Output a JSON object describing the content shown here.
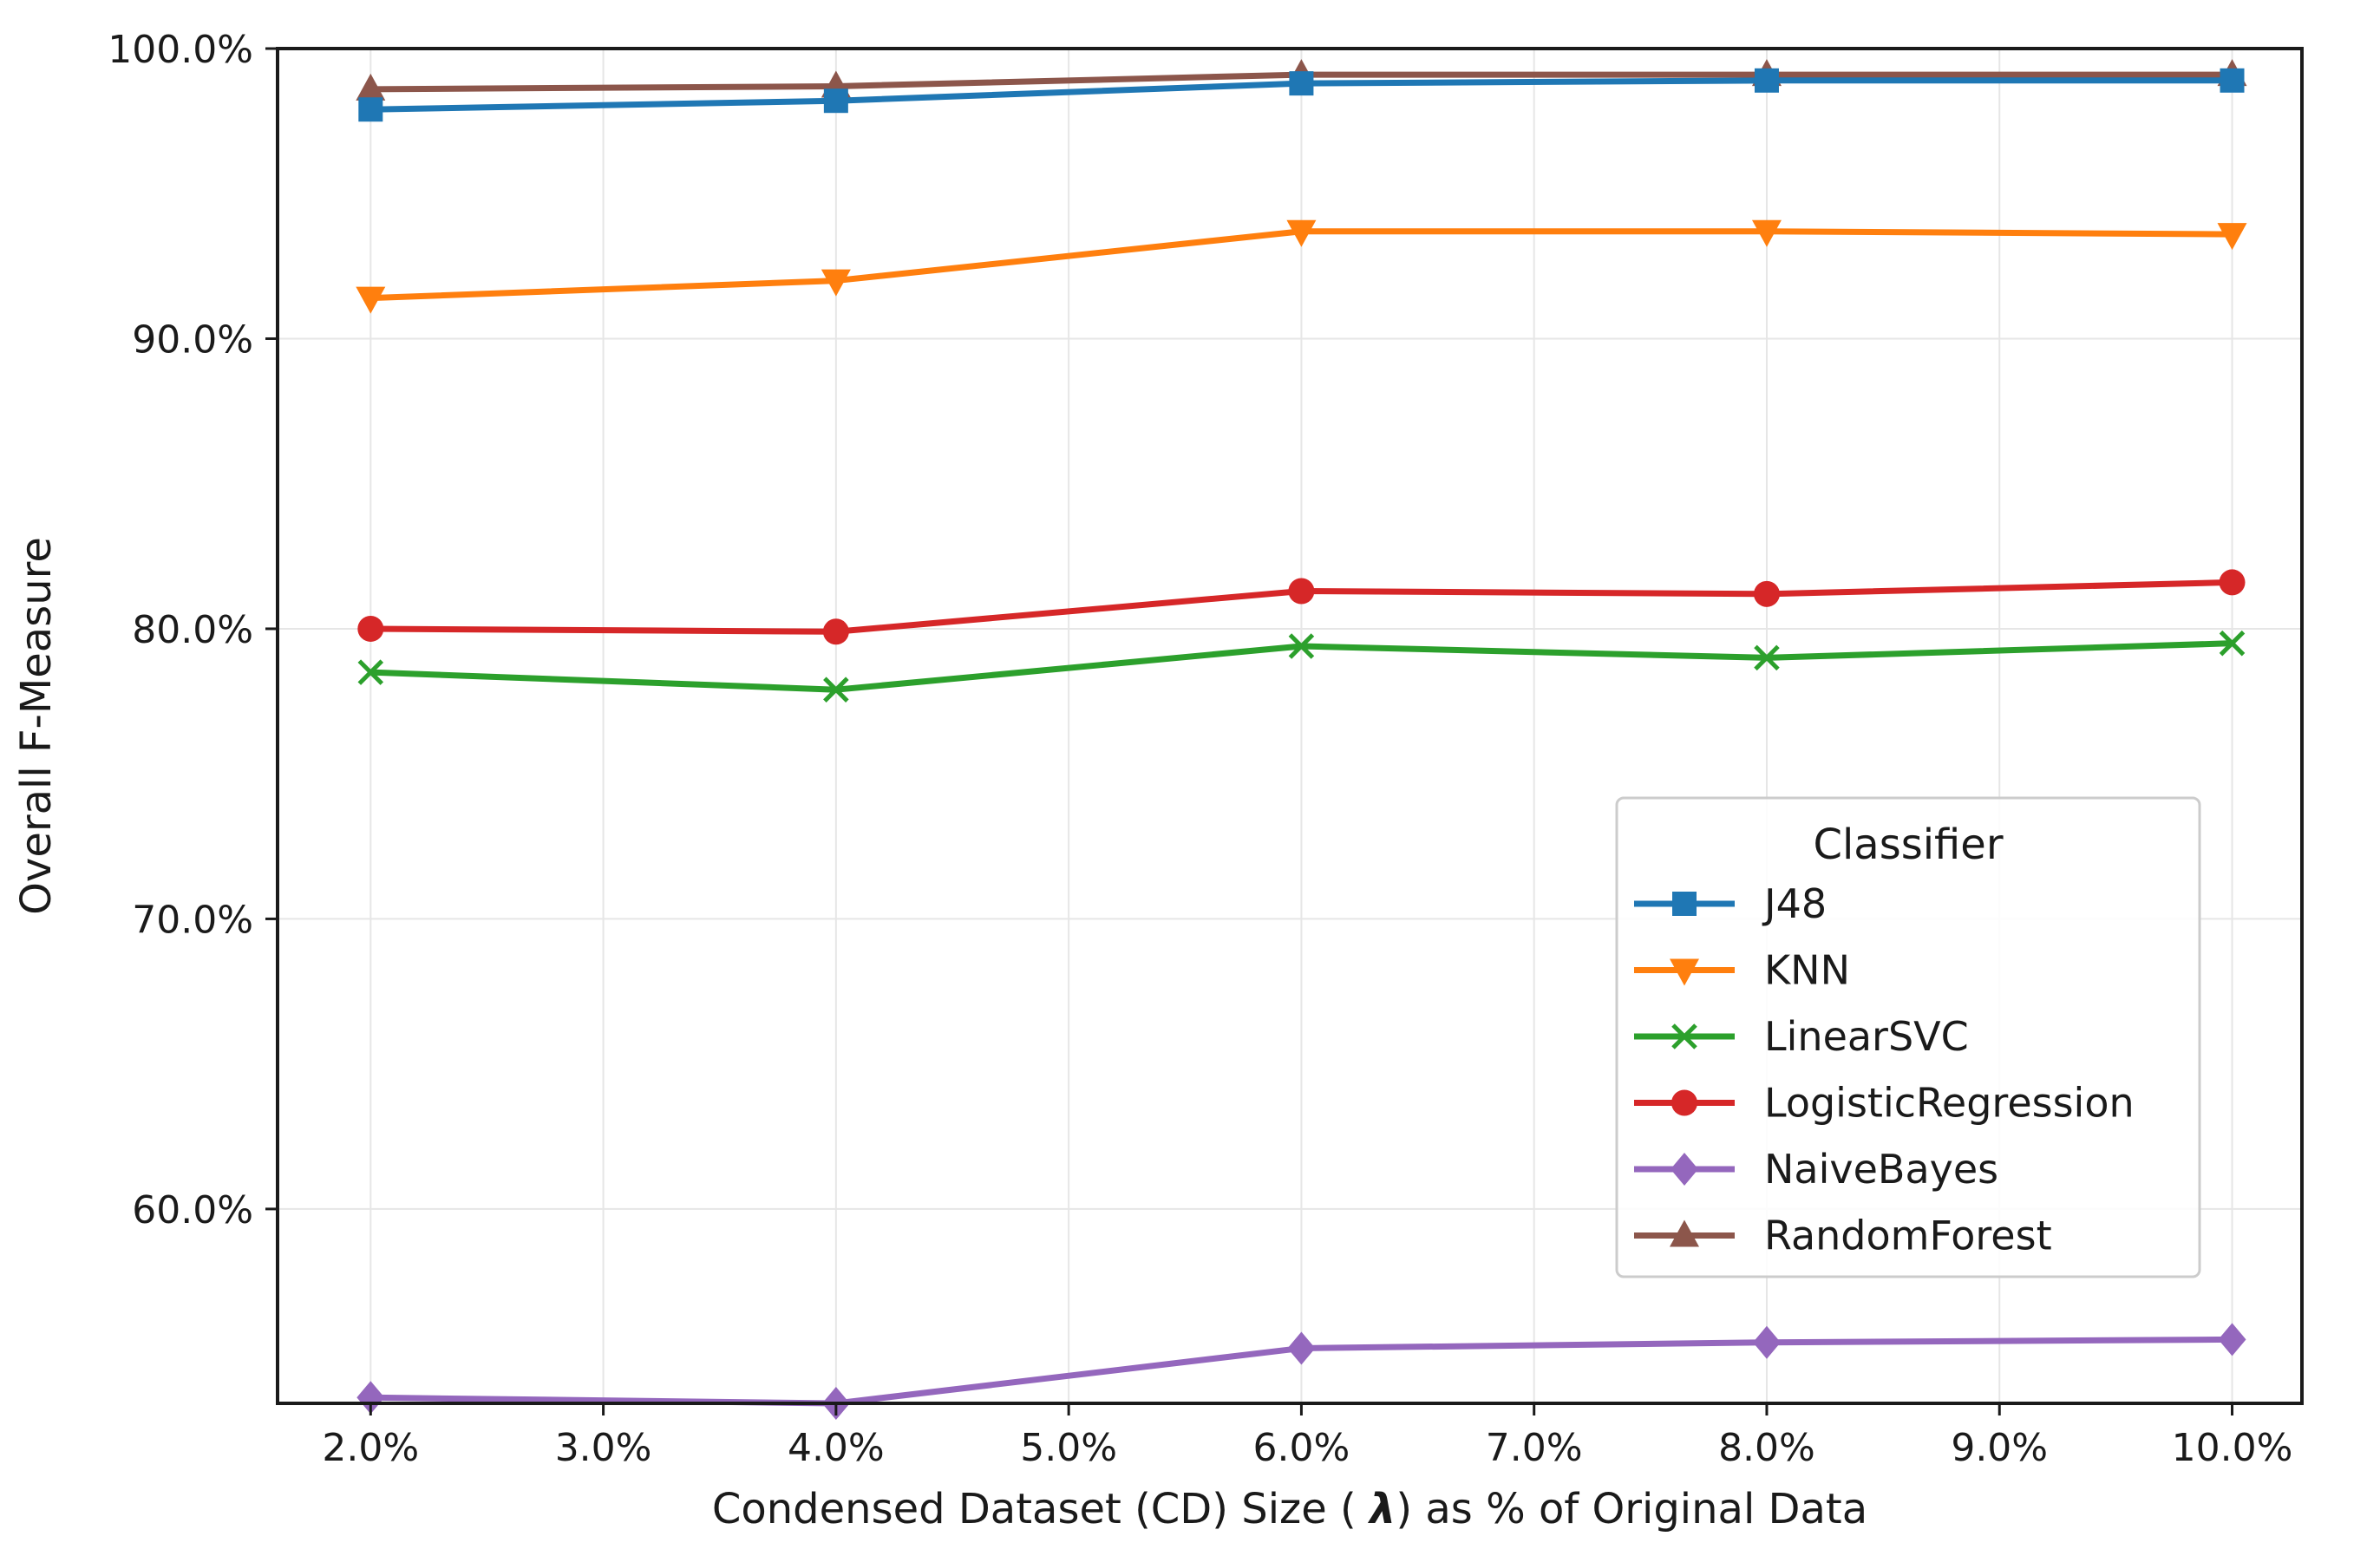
{
  "chart_data": {
    "type": "line",
    "xlabel_prefix": "Condensed Dataset (CD) Size ( ",
    "xlabel_symbol": "λ",
    "xlabel_suffix": ") as % of Original Data",
    "ylabel": "Overall F-Measure",
    "xlim": [
      1.6,
      10.3
    ],
    "ylim": [
      53.3,
      100.0
    ],
    "x_ticks": [
      2,
      3,
      4,
      5,
      6,
      7,
      8,
      9,
      10
    ],
    "x_tick_labels": [
      "2.0%",
      "3.0%",
      "4.0%",
      "5.0%",
      "6.0%",
      "7.0%",
      "8.0%",
      "9.0%",
      "10.0%"
    ],
    "y_ticks": [
      60,
      70,
      80,
      90,
      100
    ],
    "y_tick_labels": [
      "60.0%",
      "70.0%",
      "80.0%",
      "90.0%",
      "100.0%"
    ],
    "grid": true,
    "legend": {
      "title": "Classifier",
      "position": "lower-right"
    },
    "x": [
      2,
      4,
      6,
      8,
      10
    ],
    "series": [
      {
        "name": "J48",
        "marker": "square",
        "color": "#1f77b4",
        "values": [
          97.9,
          98.2,
          98.8,
          98.9,
          98.9
        ]
      },
      {
        "name": "KNN",
        "marker": "triangle-down",
        "color": "#ff7f0e",
        "values": [
          91.4,
          92.0,
          93.7,
          93.7,
          93.6
        ]
      },
      {
        "name": "LinearSVC",
        "marker": "x",
        "color": "#2ca02c",
        "values": [
          78.5,
          77.9,
          79.4,
          79.0,
          79.5
        ]
      },
      {
        "name": "LogisticRegression",
        "marker": "circle",
        "color": "#d62728",
        "values": [
          80.0,
          79.9,
          81.3,
          81.2,
          81.6
        ]
      },
      {
        "name": "NaiveBayes",
        "marker": "diamond",
        "color": "#9467bd",
        "values": [
          53.5,
          53.3,
          55.2,
          55.4,
          55.5
        ]
      },
      {
        "name": "RandomForest",
        "marker": "triangle-up",
        "color": "#8c564b",
        "values": [
          98.6,
          98.7,
          99.1,
          99.1,
          99.1
        ]
      }
    ]
  }
}
